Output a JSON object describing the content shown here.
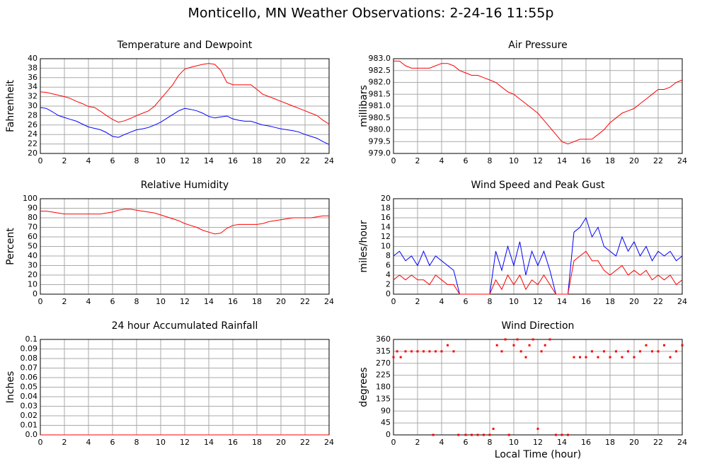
{
  "title": "Monticello, MN Weather Observations: 2-24-16 11:55p",
  "xlabel": "Local Time (hour)",
  "chart_data": [
    {
      "type": "line",
      "title": "Temperature and Dewpoint",
      "ylabel": "Fahrenheit",
      "x": [
        0,
        0.5,
        1,
        1.5,
        2,
        2.5,
        3,
        3.5,
        4,
        4.5,
        5,
        5.5,
        6,
        6.5,
        7,
        7.5,
        8,
        8.5,
        9,
        9.5,
        10,
        10.5,
        11,
        11.5,
        12,
        12.5,
        13,
        13.5,
        14,
        14.5,
        15,
        15.5,
        16,
        16.5,
        17,
        17.5,
        18,
        18.5,
        19,
        19.5,
        20,
        20.5,
        21,
        21.5,
        22,
        22.5,
        23,
        23.5,
        24
      ],
      "series": [
        {
          "color": "#ff0000",
          "values": [
            33,
            32.9,
            32.6,
            32.3,
            32,
            31.6,
            31,
            30.5,
            29.9,
            29.7,
            28.9,
            28,
            27.2,
            26.6,
            26.9,
            27.4,
            28,
            28.5,
            29,
            30,
            31.5,
            33,
            34.5,
            36.5,
            37.8,
            38.2,
            38.5,
            38.8,
            39,
            38.8,
            37.5,
            35,
            34.5,
            34.5,
            34.5,
            34.5,
            33.5,
            32.5,
            32,
            31.5,
            31,
            30.5,
            30,
            29.5,
            29,
            28.5,
            28,
            27,
            26.2
          ]
        },
        {
          "color": "#0000ff",
          "values": [
            29.7,
            29.5,
            28.8,
            28,
            27.6,
            27.2,
            26.8,
            26.2,
            25.6,
            25.3,
            25,
            24.4,
            23.6,
            23.4,
            24,
            24.5,
            25,
            25.2,
            25.5,
            26,
            26.6,
            27.4,
            28.2,
            29,
            29.5,
            29.3,
            29,
            28.5,
            27.8,
            27.5,
            27.7,
            27.9,
            27.3,
            27,
            26.8,
            26.8,
            26.4,
            26,
            25.8,
            25.5,
            25.2,
            25,
            24.8,
            24.5,
            24,
            23.6,
            23.2,
            22.5,
            21.9
          ]
        }
      ],
      "xlim": [
        0,
        24
      ],
      "xticks": [
        0,
        2,
        4,
        6,
        8,
        10,
        12,
        14,
        16,
        18,
        20,
        22,
        24
      ],
      "ylim": [
        20,
        40
      ],
      "yticks": [
        20,
        22,
        24,
        26,
        28,
        30,
        32,
        34,
        36,
        38,
        40
      ],
      "grid": true
    },
    {
      "type": "line",
      "title": "Air Pressure",
      "ylabel": "millibars",
      "x": [
        0,
        0.5,
        1,
        1.5,
        2,
        2.5,
        3,
        3.5,
        4,
        4.5,
        5,
        5.5,
        6,
        6.5,
        7,
        7.5,
        8,
        8.5,
        9,
        9.5,
        10,
        10.5,
        11,
        11.5,
        12,
        12.5,
        13,
        13.5,
        14,
        14.5,
        15,
        15.5,
        16,
        16.5,
        17,
        17.5,
        18,
        18.5,
        19,
        19.5,
        20,
        20.5,
        21,
        21.5,
        22,
        22.5,
        23,
        23.5,
        24
      ],
      "series": [
        {
          "color": "#ff0000",
          "values": [
            982.9,
            982.9,
            982.7,
            982.6,
            982.6,
            982.6,
            982.6,
            982.7,
            982.8,
            982.8,
            982.7,
            982.5,
            982.4,
            982.3,
            982.3,
            982.2,
            982.1,
            982.0,
            981.8,
            981.6,
            981.5,
            981.3,
            981.1,
            980.9,
            980.7,
            980.4,
            980.1,
            979.8,
            979.5,
            979.4,
            979.5,
            979.6,
            979.6,
            979.6,
            979.8,
            980.0,
            980.3,
            980.5,
            980.7,
            980.8,
            980.9,
            981.1,
            981.3,
            981.5,
            981.7,
            981.7,
            981.8,
            982.0,
            982.1
          ]
        }
      ],
      "xlim": [
        0,
        24
      ],
      "xticks": [
        0,
        2,
        4,
        6,
        8,
        10,
        12,
        14,
        16,
        18,
        20,
        22,
        24
      ],
      "ylim": [
        979,
        983
      ],
      "yticks": [
        {
          "value": 979,
          "label": "979.0"
        },
        {
          "value": 979.5,
          "label": "979.5"
        },
        {
          "value": 980,
          "label": "980.0"
        },
        {
          "value": 980.5,
          "label": "980.5"
        },
        {
          "value": 981,
          "label": "981.0"
        },
        {
          "value": 981.5,
          "label": "981.5"
        },
        {
          "value": 982,
          "label": "982.0"
        },
        {
          "value": 982.5,
          "label": "982.5"
        },
        {
          "value": 983,
          "label": "983.0"
        }
      ],
      "grid": true
    },
    {
      "type": "line",
      "title": "Relative Humidity",
      "ylabel": "Percent",
      "x": [
        0,
        0.5,
        1,
        1.5,
        2,
        2.5,
        3,
        3.5,
        4,
        4.5,
        5,
        5.5,
        6,
        6.5,
        7,
        7.5,
        8,
        8.5,
        9,
        9.5,
        10,
        10.5,
        11,
        11.5,
        12,
        12.5,
        13,
        13.5,
        14,
        14.5,
        15,
        15.5,
        16,
        16.5,
        17,
        17.5,
        18,
        18.5,
        19,
        19.5,
        20,
        20.5,
        21,
        21.5,
        22,
        22.5,
        23,
        23.5,
        24
      ],
      "series": [
        {
          "color": "#ff0000",
          "values": [
            87,
            87,
            86,
            85,
            84,
            84,
            84,
            84,
            84,
            84,
            84,
            85,
            86,
            88,
            89,
            89,
            88,
            87,
            86,
            85,
            83,
            81,
            79,
            77,
            74,
            72,
            70,
            67,
            65,
            63,
            64,
            69,
            72,
            73,
            73,
            73,
            73,
            74,
            76,
            77,
            78,
            79,
            80,
            80,
            80,
            80,
            81,
            82,
            82
          ]
        }
      ],
      "xlim": [
        0,
        24
      ],
      "xticks": [
        0,
        2,
        4,
        6,
        8,
        10,
        12,
        14,
        16,
        18,
        20,
        22,
        24
      ],
      "ylim": [
        0,
        100
      ],
      "yticks": [
        0,
        10,
        20,
        30,
        40,
        50,
        60,
        70,
        80,
        90,
        100
      ],
      "grid": true
    },
    {
      "type": "line",
      "title": "Wind Speed and Peak Gust",
      "ylabel": "miles/hour",
      "x": [
        0,
        0.5,
        1,
        1.5,
        2,
        2.5,
        3,
        3.5,
        4,
        4.5,
        5,
        5.5,
        6,
        6.5,
        7,
        7.5,
        8,
        8.5,
        9,
        9.5,
        10,
        10.5,
        11,
        11.5,
        12,
        12.5,
        13,
        13.5,
        14,
        14.5,
        15,
        15.5,
        16,
        16.5,
        17,
        17.5,
        18,
        18.5,
        19,
        19.5,
        20,
        20.5,
        21,
        21.5,
        22,
        22.5,
        23,
        23.5,
        24
      ],
      "series": [
        {
          "color": "#0000ff",
          "values": [
            8,
            9,
            7,
            8,
            6,
            9,
            6,
            8,
            7,
            6,
            5,
            0,
            0,
            0,
            0,
            0,
            0,
            9,
            5,
            10,
            6,
            11,
            4,
            9,
            6,
            9,
            5,
            0,
            0,
            0,
            13,
            14,
            16,
            12,
            14,
            10,
            9,
            8,
            12,
            9,
            11,
            8,
            10,
            7,
            9,
            8,
            9,
            7,
            8
          ]
        },
        {
          "color": "#ff0000",
          "values": [
            3,
            4,
            3,
            4,
            3,
            3,
            2,
            4,
            3,
            2,
            2,
            0,
            0,
            0,
            0,
            0,
            0,
            3,
            1,
            4,
            2,
            4,
            1,
            3,
            2,
            4,
            2,
            0,
            0,
            0,
            7,
            8,
            9,
            7,
            7,
            5,
            4,
            5,
            6,
            4,
            5,
            4,
            5,
            3,
            4,
            3,
            4,
            2,
            3
          ]
        }
      ],
      "xlim": [
        0,
        24
      ],
      "xticks": [
        0,
        2,
        4,
        6,
        8,
        10,
        12,
        14,
        16,
        18,
        20,
        22,
        24
      ],
      "ylim": [
        0,
        20
      ],
      "yticks": [
        0,
        2,
        4,
        6,
        8,
        10,
        12,
        14,
        16,
        18,
        20
      ],
      "grid": true
    },
    {
      "type": "line",
      "title": "24 hour Accumulated Rainfall",
      "ylabel": "Inches",
      "x": [
        0,
        24
      ],
      "series": [
        {
          "color": "#ff0000",
          "values": [
            0,
            0
          ]
        }
      ],
      "xlim": [
        0,
        24
      ],
      "xticks": [
        0,
        2,
        4,
        6,
        8,
        10,
        12,
        14,
        16,
        18,
        20,
        22,
        24
      ],
      "ylim": [
        0,
        0.1
      ],
      "yticks": [
        {
          "value": 0,
          "label": "0.0"
        },
        0.01,
        0.02,
        0.03,
        0.04,
        0.05,
        0.06,
        0.07,
        0.08,
        0.09,
        0.1
      ],
      "grid": true
    },
    {
      "type": "scatter",
      "title": "Wind Direction",
      "ylabel": "degrees",
      "x": [
        0,
        0.3,
        0.6,
        1,
        1.5,
        2,
        2.5,
        3,
        3.3,
        3.5,
        4,
        4.5,
        5,
        5.4,
        6,
        6.5,
        7,
        7.5,
        8,
        8.3,
        8.6,
        9,
        9.3,
        9.6,
        10,
        10.3,
        10.6,
        11,
        11.3,
        11.6,
        12,
        12.3,
        12.6,
        13,
        13.5,
        14,
        14.5,
        15,
        15.5,
        16,
        16.5,
        17,
        17.5,
        18,
        18.5,
        19,
        19.5,
        20,
        20.5,
        21,
        21.5,
        22,
        22.5,
        23,
        23.5,
        24
      ],
      "series": [
        {
          "color": "#ff0000",
          "values": [
            293,
            315,
            293,
            315,
            315,
            315,
            315,
            315,
            0,
            315,
            315,
            338,
            315,
            0,
            0,
            0,
            0,
            0,
            0,
            23,
            338,
            315,
            360,
            0,
            338,
            360,
            315,
            293,
            338,
            360,
            23,
            315,
            338,
            360,
            0,
            0,
            0,
            293,
            293,
            293,
            315,
            293,
            315,
            293,
            315,
            293,
            315,
            293,
            315,
            338,
            315,
            315,
            338,
            293,
            315,
            338
          ]
        }
      ],
      "xlim": [
        0,
        24
      ],
      "xticks": [
        0,
        2,
        4,
        6,
        8,
        10,
        12,
        14,
        16,
        18,
        20,
        22,
        24
      ],
      "ylim": [
        0,
        360
      ],
      "yticks": [
        0,
        45,
        90,
        135,
        180,
        225,
        270,
        315,
        360
      ],
      "grid": true
    }
  ]
}
